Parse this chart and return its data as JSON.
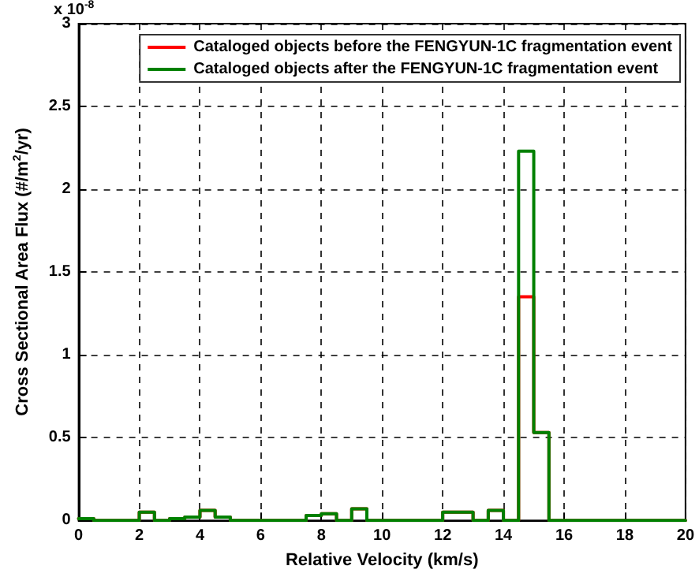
{
  "chart_data": {
    "type": "histogram",
    "xlabel": "Relative Velocity (km/s)",
    "ylabel": "Cross Sectional Area Flux (#/m$^{2}$/yr)",
    "annotations": [
      "x 10$^{-8}$"
    ],
    "bins": [
      0,
      0.5,
      1,
      1.5,
      2,
      2.5,
      3,
      3.5,
      4,
      4.5,
      5,
      5.5,
      6,
      6.5,
      7,
      7.5,
      8,
      8.5,
      9,
      9.5,
      10,
      10.5,
      11,
      11.5,
      12,
      12.5,
      13,
      13.5,
      14,
      14.5,
      15,
      15.5,
      16,
      16.5,
      17,
      17.5,
      18,
      18.5,
      19,
      19.5,
      20
    ],
    "series": [
      {
        "name": "Cataloged objects before the FENGYUN-1C fragmentation event",
        "color": "#ff0000",
        "values": [
          0.01,
          0,
          0,
          0,
          0.05,
          0,
          0.01,
          0.02,
          0.06,
          0.02,
          0,
          0,
          0,
          0,
          0,
          0.03,
          0.04,
          0,
          0.07,
          0,
          0,
          0,
          0,
          0,
          0.05,
          0.05,
          0,
          0.06,
          0,
          1.35,
          0.53,
          0,
          0,
          0,
          0,
          0,
          0,
          0,
          0,
          0
        ]
      },
      {
        "name": "Cataloged objects after the FENGYUN-1C fragmentation event",
        "color": "#008000",
        "values": [
          0.01,
          0,
          0,
          0,
          0.05,
          0,
          0.01,
          0.02,
          0.06,
          0.02,
          0,
          0,
          0,
          0,
          0,
          0.03,
          0.04,
          0,
          0.07,
          0,
          0,
          0,
          0,
          0,
          0.05,
          0.05,
          0,
          0.06,
          0,
          2.23,
          0.53,
          0,
          0,
          0,
          0,
          0,
          0,
          0,
          0,
          0
        ]
      }
    ],
    "xlim": [
      0,
      20
    ],
    "xticks": [
      0,
      2,
      4,
      6,
      8,
      10,
      12,
      14,
      16,
      18,
      20
    ],
    "ylim": [
      0,
      3
    ],
    "yticks": [
      0,
      0.5,
      1,
      1.5,
      2,
      2.5,
      3
    ],
    "grid": true,
    "legend": "top right",
    "line_style": "solid",
    "marker": "none"
  }
}
